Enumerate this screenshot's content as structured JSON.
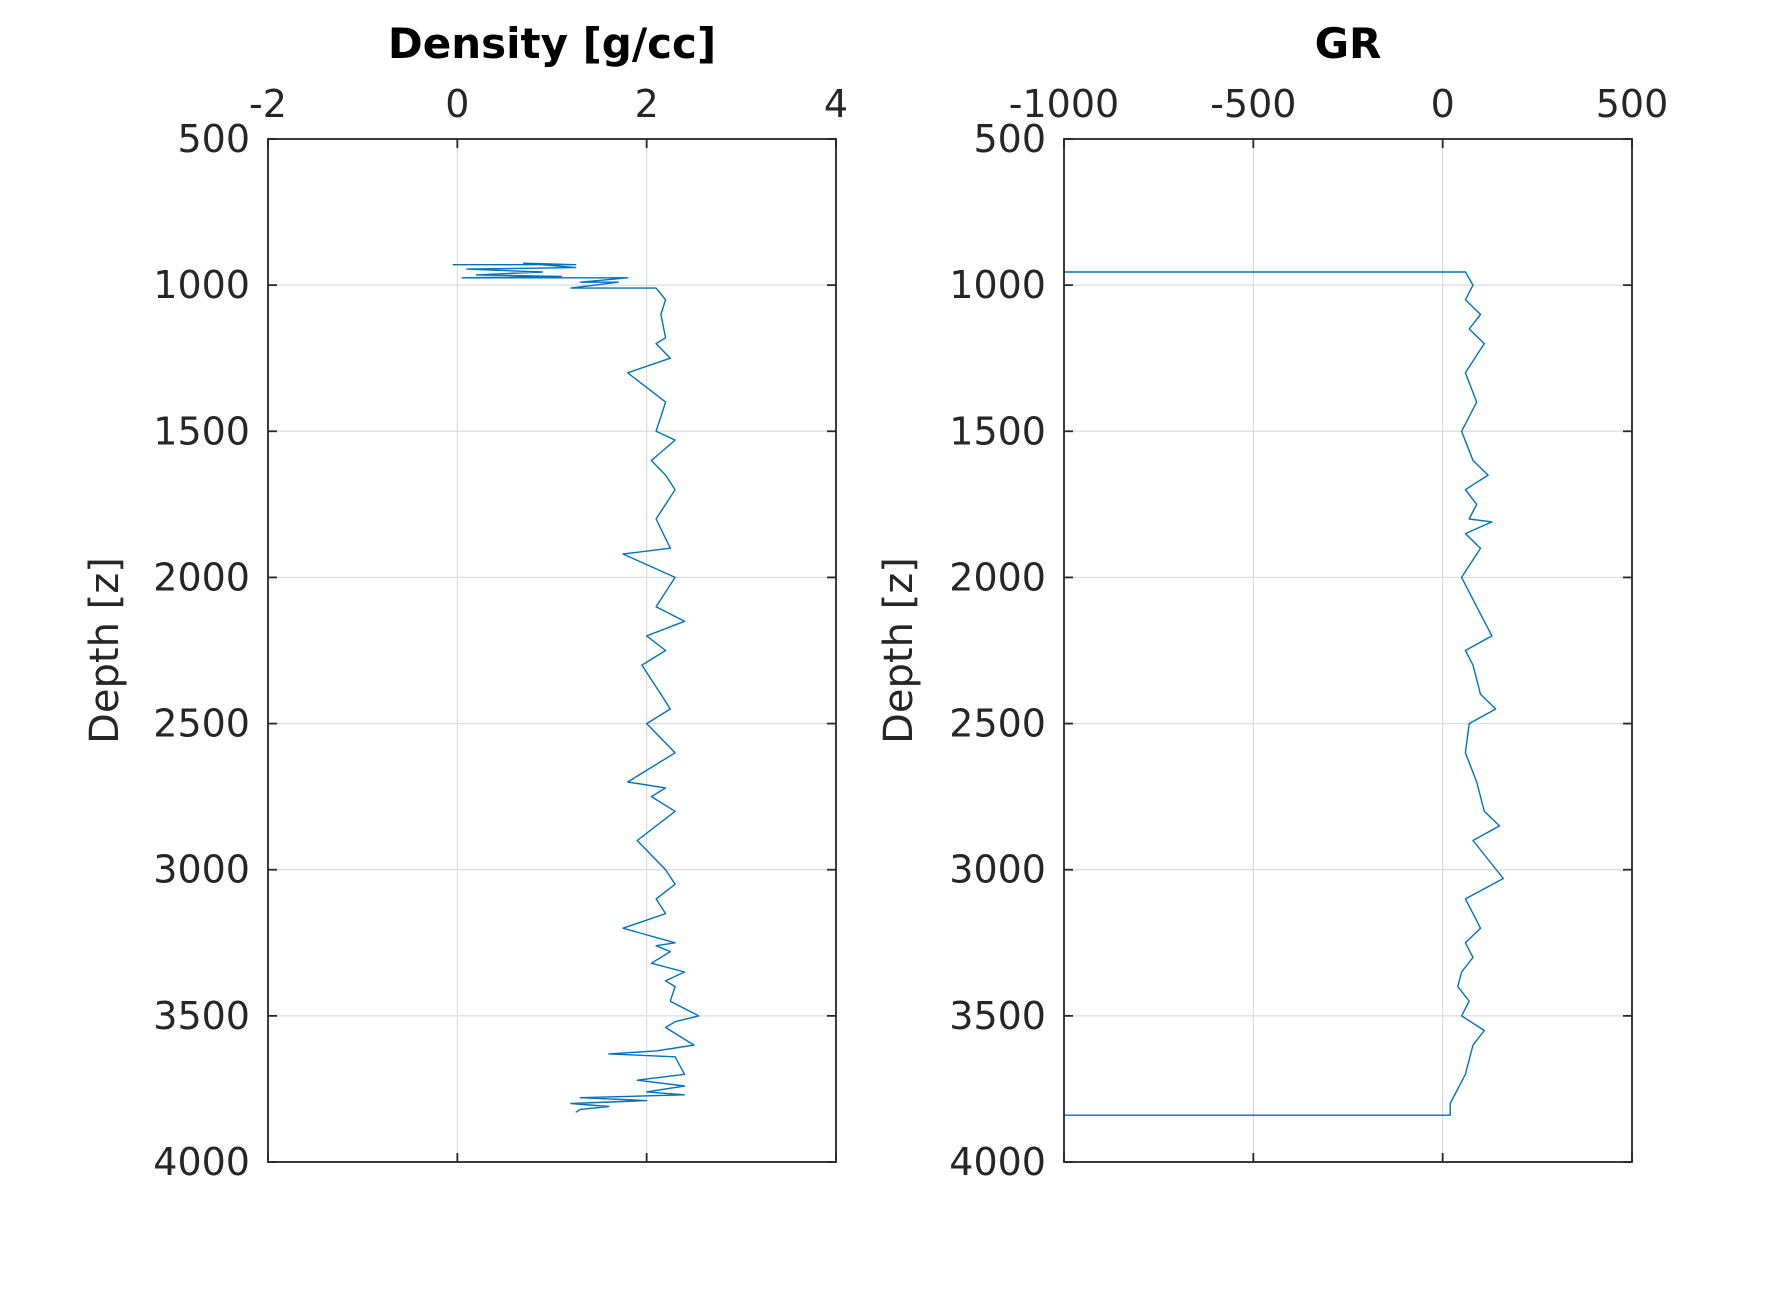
{
  "chart_data": [
    {
      "type": "line",
      "title": "Density [g/cc]",
      "xlabel": "",
      "ylabel": "Depth [z]",
      "xlim": [
        -2,
        4
      ],
      "ylim": [
        500,
        4000
      ],
      "y_reversed": true,
      "x_axis_position": "top",
      "grid": true,
      "xticks": [
        "-2",
        "0",
        "2",
        "4"
      ],
      "yticks": [
        "500",
        "1000",
        "1500",
        "2000",
        "2500",
        "3000",
        "3500",
        "4000"
      ],
      "color": "#0072BD",
      "series": [
        {
          "x": [
            -0.05,
            1.25,
            0.7,
            1.25,
            0.1,
            0.9,
            0.2,
            1.1,
            0.05,
            1.8,
            1.3,
            1.7,
            1.2,
            2.1,
            2.2,
            2.15,
            2.2,
            2.1,
            2.25,
            1.8,
            2.2,
            2.1,
            2.3,
            2.05,
            2.2,
            2.3,
            2.1,
            2.25,
            1.75,
            2.3,
            2.2,
            2.1,
            2.4,
            2.0,
            2.2,
            1.95,
            2.15,
            2.25,
            2.0,
            2.3,
            1.8,
            2.2,
            2.05,
            2.3,
            1.9,
            2.2,
            2.3,
            2.1,
            2.2,
            1.75,
            2.3,
            2.1,
            2.25,
            2.05,
            2.4,
            2.2,
            2.3,
            2.25,
            2.55,
            2.3,
            2.2,
            2.5,
            2.3,
            2.1,
            1.6,
            2.3,
            2.4,
            1.9,
            2.4,
            2.0,
            2.4,
            1.3,
            2.0,
            1.2,
            1.6,
            1.3,
            1.25
          ],
          "y": [
            930,
            930,
            925,
            940,
            945,
            955,
            965,
            970,
            975,
            975,
            990,
            990,
            1010,
            1010,
            1050,
            1100,
            1180,
            1200,
            1250,
            1300,
            1400,
            1500,
            1530,
            1600,
            1650,
            1700,
            1800,
            1900,
            1920,
            2000,
            2050,
            2100,
            2150,
            2200,
            2250,
            2300,
            2400,
            2450,
            2500,
            2600,
            2700,
            2720,
            2750,
            2800,
            2900,
            3000,
            3050,
            3100,
            3150,
            3200,
            3250,
            3260,
            3280,
            3320,
            3350,
            3380,
            3400,
            3450,
            3500,
            3520,
            3540,
            3600,
            3610,
            3620,
            3630,
            3640,
            3700,
            3720,
            3740,
            3760,
            3770,
            3780,
            3790,
            3800,
            3810,
            3820,
            3830
          ]
        }
      ]
    },
    {
      "type": "line",
      "title": "GR",
      "xlabel": "",
      "ylabel": "Depth [z]",
      "xlim": [
        -1000,
        500
      ],
      "ylim": [
        500,
        4000
      ],
      "y_reversed": true,
      "x_axis_position": "top",
      "grid": true,
      "xticks": [
        "-1000",
        "-500",
        "0",
        "500"
      ],
      "yticks": [
        "500",
        "1000",
        "1500",
        "2000",
        "2500",
        "3000",
        "3500",
        "4000"
      ],
      "color": "#0072BD",
      "series": [
        {
          "x": [
            -1000,
            -880,
            60,
            80,
            60,
            100,
            70,
            110,
            60,
            90,
            50,
            80,
            120,
            60,
            90,
            70,
            130,
            60,
            100,
            50,
            90,
            130,
            60,
            80,
            100,
            140,
            70,
            60,
            90,
            110,
            150,
            80,
            160,
            60,
            80,
            100,
            60,
            80,
            50,
            40,
            70,
            50,
            110,
            80,
            60,
            20,
            20,
            -1000
          ],
          "y": [
            955,
            955,
            955,
            1000,
            1050,
            1100,
            1150,
            1200,
            1300,
            1400,
            1500,
            1600,
            1650,
            1700,
            1750,
            1800,
            1810,
            1850,
            1900,
            2000,
            2100,
            2200,
            2250,
            2300,
            2400,
            2450,
            2500,
            2600,
            2700,
            2800,
            2850,
            2900,
            3030,
            3100,
            3150,
            3200,
            3250,
            3300,
            3350,
            3400,
            3450,
            3500,
            3550,
            3600,
            3700,
            3800,
            3840,
            3840
          ]
        }
      ]
    }
  ]
}
